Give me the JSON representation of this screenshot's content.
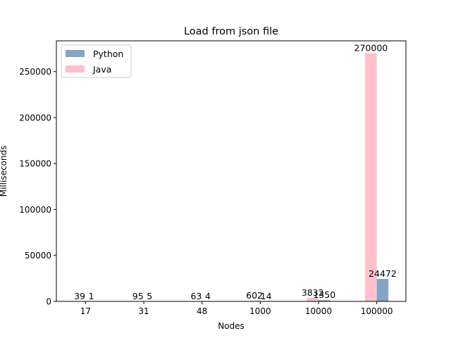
{
  "chart_data": {
    "type": "bar",
    "title": "Load from json file",
    "xlabel": "Nodes",
    "ylabel": "Milliseconds",
    "categories": [
      "17",
      "31",
      "48",
      "1000",
      "10000",
      "100000"
    ],
    "series": [
      {
        "name": "Java",
        "color": "#ffc0cb",
        "values": [
          39,
          95,
          63,
          602,
          3832,
          270000
        ]
      },
      {
        "name": "Python",
        "color": "#85a5c4",
        "values": [
          1,
          5,
          4,
          14,
          1350,
          24472
        ]
      }
    ],
    "legend_order": [
      "Python",
      "Java"
    ],
    "legend_position": "top-left",
    "ylim": [
      0,
      283500
    ],
    "yticks": [
      0,
      50000,
      100000,
      150000,
      200000,
      250000
    ],
    "grid": false
  }
}
